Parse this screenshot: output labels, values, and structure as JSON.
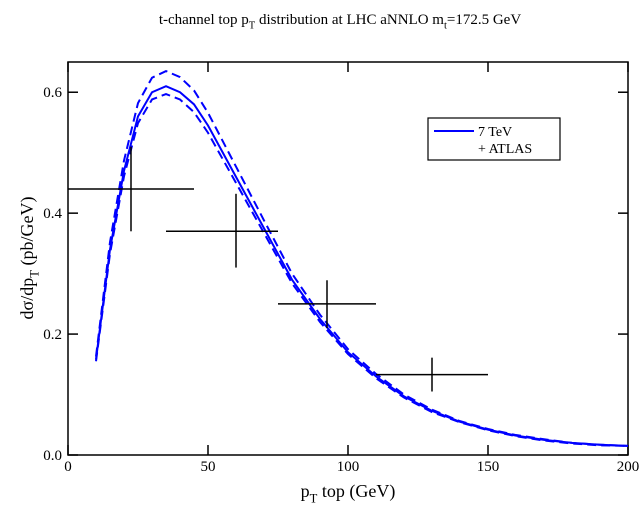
{
  "chart_data": {
    "type": "line",
    "title": [
      {
        "text": "t-channel top p"
      },
      {
        "text": "T",
        "sub": true
      },
      {
        "text": " distribution at LHC    aNNLO    m"
      },
      {
        "text": "t",
        "sub": true
      },
      {
        "text": "=172.5 GeV"
      }
    ],
    "xlabel": [
      {
        "text": "p"
      },
      {
        "text": "T",
        "sub": true
      },
      {
        "text": "  top (GeV)"
      }
    ],
    "ylabel": [
      {
        "text": "dσ/dp"
      },
      {
        "text": "T",
        "sub": true
      },
      {
        "text": " (pb/GeV)"
      }
    ],
    "x": [
      10,
      15,
      20,
      25,
      30,
      35,
      40,
      45,
      50,
      60,
      70,
      80,
      90,
      100,
      110,
      120,
      130,
      140,
      150,
      160,
      170,
      180,
      190,
      200
    ],
    "series": [
      {
        "name": "7 TeV",
        "color": "#0000ff",
        "dash": false,
        "values": [
          0.158,
          0.34,
          0.47,
          0.56,
          0.6,
          0.61,
          0.6,
          0.58,
          0.545,
          0.46,
          0.375,
          0.29,
          0.225,
          0.17,
          0.13,
          0.097,
          0.073,
          0.055,
          0.042,
          0.032,
          0.025,
          0.02,
          0.017,
          0.015
        ]
      },
      {
        "color": "#0000ff",
        "dash": true,
        "values": [
          0.163,
          0.352,
          0.487,
          0.582,
          0.624,
          0.635,
          0.625,
          0.603,
          0.566,
          0.477,
          0.388,
          0.3,
          0.232,
          0.175,
          0.134,
          0.1,
          0.075,
          0.056,
          0.043,
          0.033,
          0.026,
          0.02,
          0.017,
          0.015
        ]
      },
      {
        "color": "#0000ff",
        "dash": true,
        "values": [
          0.155,
          0.333,
          0.461,
          0.549,
          0.588,
          0.597,
          0.588,
          0.567,
          0.533,
          0.45,
          0.367,
          0.284,
          0.22,
          0.167,
          0.127,
          0.095,
          0.071,
          0.054,
          0.041,
          0.031,
          0.024,
          0.019,
          0.016,
          0.015
        ]
      }
    ],
    "errorbars": {
      "name": "+ ATLAS",
      "color": "#000000",
      "x": [
        22.5,
        60,
        92.5,
        130
      ],
      "xmin": [
        0,
        35,
        75,
        110
      ],
      "xmax": [
        45,
        75,
        110,
        150
      ],
      "y": [
        0.44,
        0.37,
        0.25,
        0.133
      ],
      "ymin": [
        0.37,
        0.31,
        0.21,
        0.105
      ],
      "ymax": [
        0.51,
        0.432,
        0.289,
        0.161
      ]
    },
    "xlim": [
      0,
      200
    ],
    "xticks": [
      0,
      50,
      100,
      150,
      200
    ],
    "ylim": [
      0,
      0.65
    ],
    "yticks": [
      {
        "value": 0,
        "label": "0.0"
      },
      0.2,
      0.4,
      0.6
    ],
    "legend": "upper right"
  }
}
